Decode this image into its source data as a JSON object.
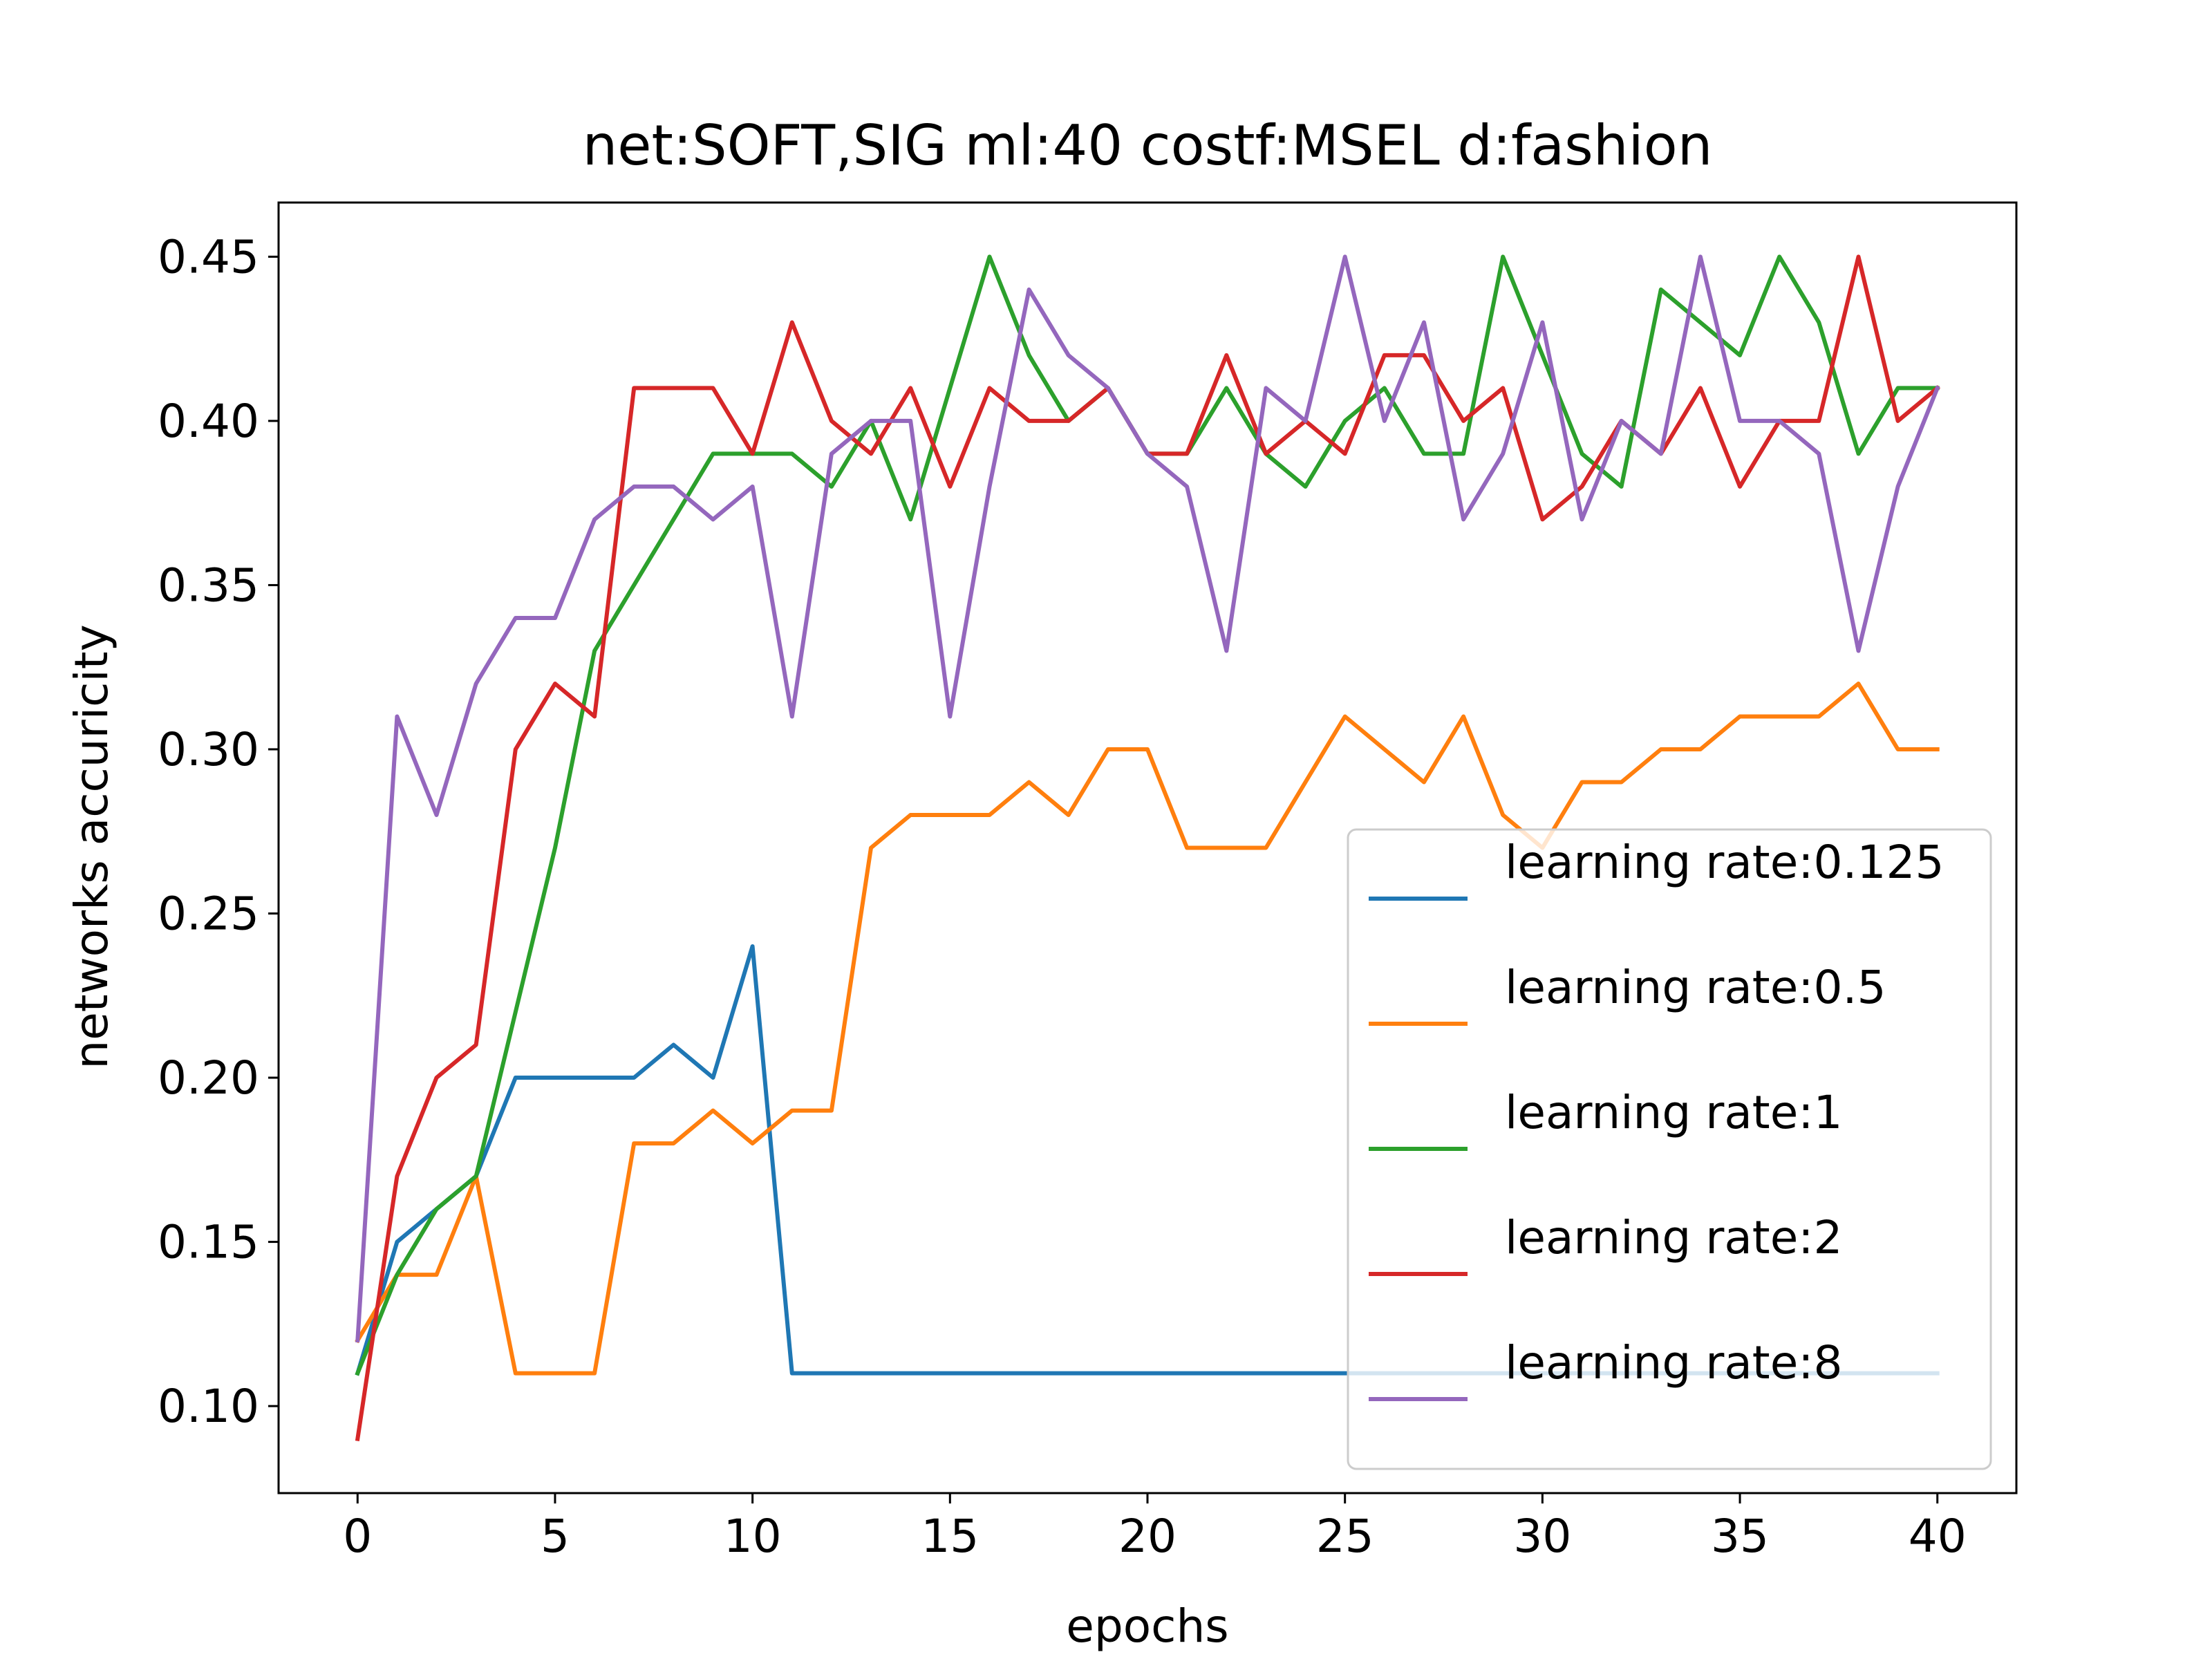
{
  "chart_data": {
    "type": "line",
    "title": "net:SOFT,SIG ml:40 costf:MSEL d:fashion",
    "xlabel": "epochs",
    "ylabel": "networks accuricity",
    "xlim": [
      -2,
      42
    ],
    "ylim": [
      0.0735,
      0.4665
    ],
    "xticks": [
      0,
      5,
      10,
      15,
      20,
      25,
      30,
      35,
      40
    ],
    "xtick_labels": [
      "0",
      "5",
      "10",
      "15",
      "20",
      "25",
      "30",
      "35",
      "40"
    ],
    "yticks": [
      0.1,
      0.15,
      0.2,
      0.25,
      0.3,
      0.35,
      0.4,
      0.45
    ],
    "ytick_labels": [
      "0.10",
      "0.15",
      "0.20",
      "0.25",
      "0.30",
      "0.35",
      "0.40",
      "0.45"
    ],
    "grid": false,
    "legend_position": "lower-right",
    "x": [
      0,
      1,
      2,
      3,
      4,
      5,
      6,
      7,
      8,
      9,
      10,
      11,
      12,
      13,
      14,
      15,
      16,
      17,
      18,
      19,
      20,
      21,
      22,
      23,
      24,
      25,
      26,
      27,
      28,
      29,
      30,
      31,
      32,
      33,
      34,
      35,
      36,
      37,
      38,
      39,
      40
    ],
    "series": [
      {
        "name": "learning rate:0.125",
        "color": "#1f77b4",
        "values": [
          0.11,
          0.15,
          0.16,
          0.17,
          0.2,
          0.2,
          0.2,
          0.2,
          0.21,
          0.2,
          0.24,
          0.11,
          0.11,
          0.11,
          0.11,
          0.11,
          0.11,
          0.11,
          0.11,
          0.11,
          0.11,
          0.11,
          0.11,
          0.11,
          0.11,
          0.11,
          0.11,
          0.11,
          0.11,
          0.11,
          0.11,
          0.11,
          0.11,
          0.11,
          0.11,
          0.11,
          0.11,
          0.11,
          0.11,
          0.11,
          0.11
        ]
      },
      {
        "name": "learning rate:0.5",
        "color": "#ff7f0e",
        "values": [
          0.12,
          0.14,
          0.14,
          0.17,
          0.11,
          0.11,
          0.11,
          0.18,
          0.18,
          0.19,
          0.18,
          0.19,
          0.19,
          0.27,
          0.28,
          0.28,
          0.28,
          0.29,
          0.28,
          0.3,
          0.3,
          0.27,
          0.27,
          0.27,
          0.29,
          0.31,
          0.3,
          0.29,
          0.31,
          0.28,
          0.27,
          0.29,
          0.29,
          0.3,
          0.3,
          0.31,
          0.31,
          0.31,
          0.32,
          0.3,
          0.3
        ]
      },
      {
        "name": "learning rate:1",
        "color": "#2ca02c",
        "values": [
          0.11,
          0.14,
          0.16,
          0.17,
          0.22,
          0.27,
          0.33,
          0.35,
          0.37,
          0.39,
          0.39,
          0.39,
          0.38,
          0.4,
          0.37,
          0.41,
          0.45,
          0.42,
          0.4,
          0.41,
          0.39,
          0.39,
          0.41,
          0.39,
          0.38,
          0.4,
          0.41,
          0.39,
          0.39,
          0.45,
          0.42,
          0.39,
          0.38,
          0.44,
          0.43,
          0.42,
          0.45,
          0.43,
          0.39,
          0.41,
          0.41
        ]
      },
      {
        "name": "learning rate:2",
        "color": "#d62728",
        "values": [
          0.09,
          0.17,
          0.2,
          0.21,
          0.3,
          0.32,
          0.31,
          0.41,
          0.41,
          0.41,
          0.39,
          0.43,
          0.4,
          0.39,
          0.41,
          0.38,
          0.41,
          0.4,
          0.4,
          0.41,
          0.39,
          0.39,
          0.42,
          0.39,
          0.4,
          0.39,
          0.42,
          0.42,
          0.4,
          0.41,
          0.37,
          0.38,
          0.4,
          0.39,
          0.41,
          0.38,
          0.4,
          0.4,
          0.45,
          0.4,
          0.41
        ]
      },
      {
        "name": "learning rate:8",
        "color": "#9467bd",
        "values": [
          0.12,
          0.31,
          0.28,
          0.32,
          0.34,
          0.34,
          0.37,
          0.38,
          0.38,
          0.37,
          0.38,
          0.31,
          0.39,
          0.4,
          0.4,
          0.31,
          0.38,
          0.44,
          0.42,
          0.41,
          0.39,
          0.38,
          0.33,
          0.41,
          0.4,
          0.45,
          0.4,
          0.43,
          0.37,
          0.39,
          0.43,
          0.37,
          0.4,
          0.39,
          0.45,
          0.4,
          0.4,
          0.39,
          0.33,
          0.38,
          0.41
        ]
      }
    ]
  }
}
